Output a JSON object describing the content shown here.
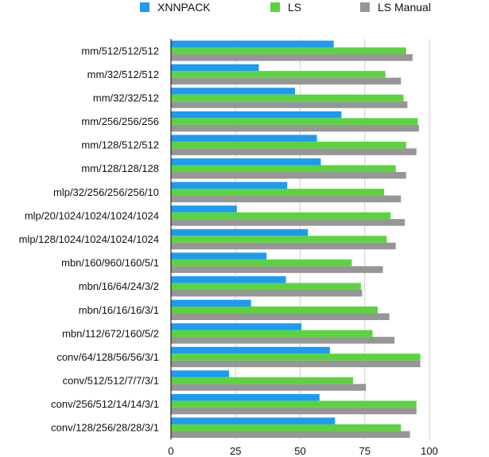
{
  "chart_data": {
    "type": "bar",
    "orientation": "horizontal",
    "categories": [
      "mm/512/512/512",
      "mm/32/512/512",
      "mm/32/32/512",
      "mm/256/256/256",
      "mm/128/512/512",
      "mm/128/128/128",
      "mlp/32/256/256/256/10",
      "mlp/20/1024/1024/1024/1024",
      "mlp/128/1024/1024/1024/1024",
      "mbn/160/960/160/5/1",
      "mbn/16/64/24/3/2",
      "mbn/16/16/16/3/1",
      "mbn/112/672/160/5/2",
      "conv/64/128/56/56/3/1",
      "conv/512/512/7/7/3/1",
      "conv/256/512/14/14/3/1",
      "conv/128/256/28/28/3/1"
    ],
    "series": [
      {
        "name": "XNNPACK",
        "color": "#1e9bf0",
        "values": [
          63,
          34,
          48,
          66,
          56.5,
          58,
          45,
          25.5,
          53,
          37,
          44.5,
          31,
          50.5,
          61.5,
          22.5,
          57.5,
          63.5
        ]
      },
      {
        "name": "LS",
        "color": "#5ad43e",
        "values": [
          91,
          83,
          90,
          95.5,
          91,
          87,
          82.5,
          85,
          83.5,
          70,
          73.5,
          80,
          78,
          96.5,
          70.5,
          95,
          89
        ]
      },
      {
        "name": "LS Manual",
        "color": "#969696",
        "values": [
          93.5,
          89,
          91.5,
          96,
          95,
          91,
          89,
          90.5,
          87,
          82,
          74,
          84.5,
          86.5,
          96.5,
          75.5,
          95,
          92.5
        ]
      }
    ],
    "xlim": [
      0,
      100
    ],
    "xticks": [
      "0",
      "25",
      "50",
      "75",
      "100"
    ],
    "grid": true,
    "legend_position": "top"
  }
}
